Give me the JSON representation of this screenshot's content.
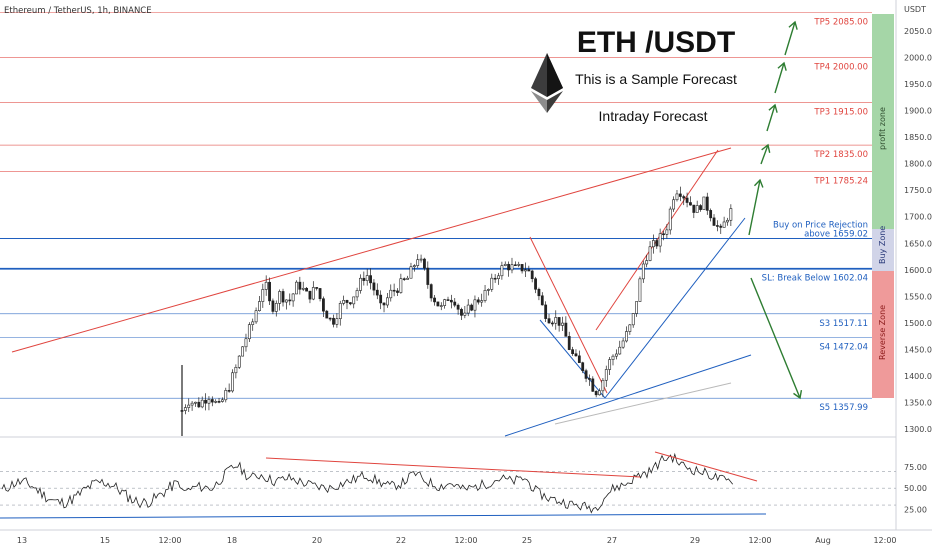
{
  "header": {
    "symbol_line": "Ethereum / TetherUS, 1h, BINANCE"
  },
  "panel": {
    "title": "ETH /USDT",
    "subtitle": "This is a Sample Forecast",
    "note": "Intraday Forecast"
  },
  "price_axis": {
    "unit": "USDT",
    "ticks": [
      2050,
      2000,
      1950,
      1900,
      1850,
      1800,
      1750,
      1700,
      1650,
      1600,
      1550,
      1500,
      1450,
      1400,
      1350,
      1300
    ],
    "tick_labels": [
      "2050.00",
      "2000.00",
      "1950.00",
      "1900.00",
      "1850.00",
      "1800.00",
      "1750.00",
      "1700.00",
      "1650.00",
      "1600.00",
      "1550.00",
      "1500.00",
      "1450.00",
      "1400.00",
      "1350.00",
      "1300.00"
    ]
  },
  "rsi_axis": {
    "tick_labels": [
      "75.00",
      "50.00",
      "25.00"
    ]
  },
  "time_axis": {
    "labels": [
      "13",
      "15",
      "12:00",
      "18",
      "20",
      "22",
      "12:00",
      "25",
      "27",
      "29",
      "12:00",
      "Aug",
      "12:00"
    ]
  },
  "zones": {
    "profit": "profit zone",
    "buy": "Buy Zone",
    "reverse": "Reverse Zone"
  },
  "colors": {
    "up": "#222222",
    "down": "#222222",
    "target_line": "#e0453f",
    "buy_line": "#1f5fbf",
    "support_line": "#6b93d6",
    "green_arrow": "#2e7d32",
    "profit_zone": "#a5d6a7",
    "buy_zone": "#d1d4e8",
    "reverse_zone": "#ef9a9a"
  },
  "chart_data": {
    "type": "candlestick",
    "x_range": [
      "13",
      "Aug 12:00"
    ],
    "ylim": [
      1290,
      2110
    ],
    "levels": [
      {
        "name": "TP5",
        "value": 2085.0,
        "label": "TP5 2085.00",
        "color": "#e0453f"
      },
      {
        "name": "TP4",
        "value": 2000.0,
        "label": "TP4 2000.00",
        "color": "#e0453f"
      },
      {
        "name": "TP3",
        "value": 1915.0,
        "label": "TP3 1915.00",
        "color": "#e0453f"
      },
      {
        "name": "TP2",
        "value": 1835.0,
        "label": "TP2 1835.00",
        "color": "#e0453f"
      },
      {
        "name": "TP1",
        "value": 1785.24,
        "label": "TP1 1785.24",
        "color": "#e0453f"
      },
      {
        "name": "Buy",
        "value": 1659.02,
        "label": "Buy on Price Rejection above 1659.02",
        "label_lines": [
          "Buy on Price Rejection",
          "above 1659.02"
        ],
        "color": "#1f5fbf"
      },
      {
        "name": "SL",
        "value": 1602.04,
        "label": "SL: Break Below 1602.04",
        "color": "#1f5fbf"
      },
      {
        "name": "S3",
        "value": 1517.11,
        "label": "S3 1517.11",
        "color": "#1f5fbf"
      },
      {
        "name": "S4",
        "value": 1472.04,
        "label": "S4 1472.04",
        "color": "#1f5fbf"
      },
      {
        "name": "S5",
        "value": 1357.99,
        "label": "S5 1357.99",
        "color": "#1f5fbf"
      }
    ],
    "price_path": [
      [
        0,
        1335
      ],
      [
        4,
        1355
      ],
      [
        10,
        1345
      ],
      [
        18,
        1365
      ],
      [
        24,
        1340
      ],
      [
        30,
        1375
      ],
      [
        36,
        1420
      ],
      [
        40,
        1460
      ],
      [
        46,
        1500
      ],
      [
        50,
        1540
      ],
      [
        54,
        1580
      ],
      [
        58,
        1525
      ],
      [
        64,
        1555
      ],
      [
        70,
        1540
      ],
      [
        76,
        1575
      ],
      [
        82,
        1550
      ],
      [
        88,
        1565
      ],
      [
        92,
        1530
      ],
      [
        98,
        1500
      ],
      [
        104,
        1535
      ],
      [
        110,
        1545
      ],
      [
        114,
        1560
      ],
      [
        120,
        1595
      ],
      [
        126,
        1560
      ],
      [
        130,
        1525
      ],
      [
        136,
        1555
      ],
      [
        142,
        1570
      ],
      [
        148,
        1585
      ],
      [
        154,
        1625
      ],
      [
        158,
        1600
      ],
      [
        162,
        1560
      ],
      [
        166,
        1540
      ],
      [
        170,
        1525
      ],
      [
        174,
        1550
      ],
      [
        178,
        1545
      ],
      [
        184,
        1505
      ],
      [
        188,
        1530
      ],
      [
        194,
        1545
      ],
      [
        200,
        1560
      ],
      [
        206,
        1595
      ],
      [
        212,
        1610
      ],
      [
        218,
        1600
      ],
      [
        224,
        1605
      ],
      [
        228,
        1590
      ],
      [
        232,
        1560
      ],
      [
        236,
        1525
      ],
      [
        240,
        1510
      ],
      [
        246,
        1505
      ],
      [
        250,
        1480
      ],
      [
        254,
        1445
      ],
      [
        258,
        1425
      ],
      [
        262,
        1415
      ],
      [
        266,
        1395
      ],
      [
        270,
        1370
      ],
      [
        274,
        1385
      ],
      [
        278,
        1420
      ],
      [
        282,
        1440
      ],
      [
        286,
        1455
      ],
      [
        290,
        1475
      ],
      [
        294,
        1500
      ],
      [
        298,
        1560
      ],
      [
        302,
        1620
      ],
      [
        306,
        1640
      ],
      [
        310,
        1650
      ],
      [
        314,
        1665
      ],
      [
        318,
        1690
      ],
      [
        320,
        1735
      ],
      [
        324,
        1755
      ],
      [
        328,
        1740
      ],
      [
        332,
        1725
      ],
      [
        336,
        1710
      ],
      [
        340,
        1730
      ],
      [
        344,
        1715
      ],
      [
        348,
        1690
      ],
      [
        352,
        1670
      ],
      [
        356,
        1700
      ],
      [
        360,
        1715
      ]
    ],
    "rsi": [
      [
        0,
        45
      ],
      [
        10,
        52
      ],
      [
        20,
        50
      ],
      [
        30,
        70
      ],
      [
        36,
        78
      ],
      [
        44,
        62
      ],
      [
        52,
        66
      ],
      [
        60,
        58
      ],
      [
        70,
        62
      ],
      [
        80,
        56
      ],
      [
        88,
        52
      ],
      [
        96,
        50
      ],
      [
        104,
        55
      ],
      [
        112,
        60
      ],
      [
        120,
        66
      ],
      [
        128,
        58
      ],
      [
        136,
        52
      ],
      [
        144,
        56
      ],
      [
        152,
        68
      ],
      [
        160,
        58
      ],
      [
        168,
        52
      ],
      [
        176,
        56
      ],
      [
        184,
        48
      ],
      [
        192,
        52
      ],
      [
        200,
        56
      ],
      [
        208,
        62
      ],
      [
        216,
        58
      ],
      [
        224,
        62
      ],
      [
        232,
        45
      ],
      [
        240,
        38
      ],
      [
        248,
        34
      ],
      [
        256,
        30
      ],
      [
        264,
        28
      ],
      [
        270,
        26
      ],
      [
        276,
        40
      ],
      [
        282,
        50
      ],
      [
        290,
        55
      ],
      [
        298,
        65
      ],
      [
        306,
        70
      ],
      [
        314,
        84
      ],
      [
        320,
        88
      ],
      [
        326,
        78
      ],
      [
        334,
        72
      ],
      [
        342,
        68
      ],
      [
        350,
        62
      ],
      [
        356,
        58
      ],
      [
        360,
        60
      ]
    ],
    "rsi_ylim": [
      10,
      100
    ],
    "rsi_levels": [
      70,
      50,
      30
    ]
  }
}
